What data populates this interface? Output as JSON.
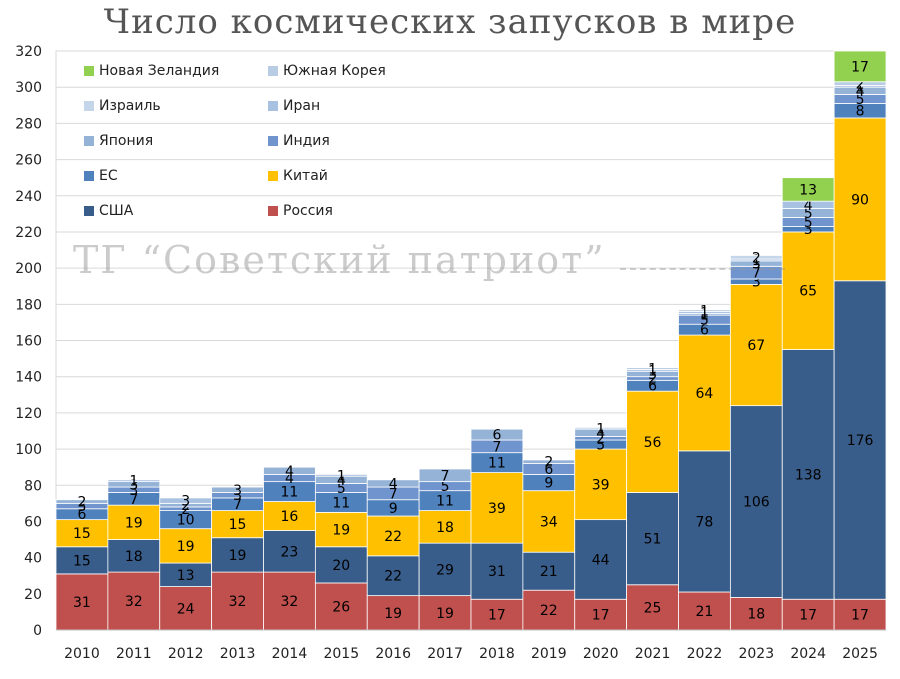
{
  "chart_data": {
    "type": "bar",
    "stacked": true,
    "title": "Число космических запусков в мире",
    "watermark": "ТГ “Советский патриот”",
    "xlabel": "",
    "ylabel": "",
    "ylim": [
      0,
      320
    ],
    "yticks": [
      0,
      20,
      40,
      60,
      80,
      100,
      120,
      140,
      160,
      180,
      200,
      220,
      240,
      260,
      280,
      300,
      320
    ],
    "grid": true,
    "categories": [
      "2010",
      "2011",
      "2012",
      "2013",
      "2014",
      "2015",
      "2016",
      "2017",
      "2018",
      "2019",
      "2020",
      "2021",
      "2022",
      "2023",
      "2024",
      "2025"
    ],
    "series": [
      {
        "name": "Россия",
        "color": "#c0504d",
        "label_color": "#000000",
        "values": [
          31,
          32,
          24,
          32,
          32,
          26,
          19,
          19,
          17,
          22,
          17,
          25,
          21,
          18,
          17,
          17
        ]
      },
      {
        "name": "США",
        "color": "#385d8a",
        "label_color": "#000000",
        "values": [
          15,
          18,
          13,
          19,
          23,
          20,
          22,
          29,
          31,
          21,
          44,
          51,
          78,
          106,
          138,
          176
        ]
      },
      {
        "name": "Китай",
        "color": "#ffc000",
        "label_color": "#000000",
        "values": [
          15,
          19,
          19,
          15,
          16,
          19,
          22,
          18,
          39,
          34,
          39,
          56,
          64,
          67,
          65,
          90
        ]
      },
      {
        "name": "ЕС",
        "color": "#4f81bd",
        "label_color": "#000000",
        "values": [
          6,
          7,
          10,
          7,
          11,
          11,
          9,
          11,
          11,
          9,
          5,
          6,
          6,
          3,
          3,
          8
        ]
      },
      {
        "name": "Индия",
        "color": "#7094cd",
        "label_color": "#000000",
        "values": [
          3,
          3,
          2,
          3,
          4,
          5,
          7,
          5,
          7,
          6,
          2,
          2,
          5,
          7,
          5,
          5
        ]
      },
      {
        "name": "Япония",
        "color": "#95b3d7",
        "label_color": "#000000",
        "values": [
          2,
          3,
          2,
          3,
          4,
          4,
          4,
          7,
          6,
          2,
          4,
          3,
          1,
          3,
          5,
          4
        ]
      },
      {
        "name": "Иран",
        "color": "#a9c1e0",
        "label_color": "#000000",
        "values": [
          0,
          1,
          3,
          0,
          0,
          1,
          0,
          0,
          0,
          0,
          0,
          1,
          1,
          1,
          4,
          1
        ]
      },
      {
        "name": "Израиль",
        "color": "#c5d6ea",
        "label_color": "#000000",
        "values": [
          0,
          0,
          0,
          0,
          0,
          0,
          0,
          0,
          0,
          0,
          1,
          0,
          0,
          2,
          0,
          0
        ]
      },
      {
        "name": "Южная Корея",
        "color": "#b8cce4",
        "label_color": "#000000",
        "values": [
          0,
          0,
          0,
          0,
          0,
          0,
          0,
          0,
          0,
          0,
          0,
          1,
          1,
          0,
          0,
          2
        ]
      },
      {
        "name": "Новая Зеландия",
        "color": "#92d050",
        "label_color": "#000000",
        "values": [
          0,
          0,
          0,
          0,
          0,
          0,
          0,
          0,
          0,
          0,
          0,
          0,
          0,
          0,
          13,
          17
        ]
      }
    ],
    "legend": {
      "position": "top-left",
      "order": [
        "Новая Зеландия",
        "Южная Корея",
        "Израиль",
        "Иран",
        "Япония",
        "Индия",
        "ЕС",
        "Китай",
        "США",
        "Россия"
      ]
    }
  }
}
